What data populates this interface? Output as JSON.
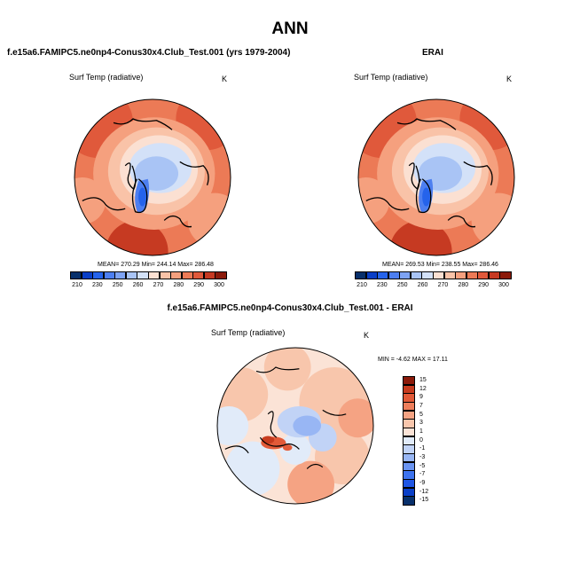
{
  "main_title": "ANN",
  "panels": [
    {
      "title": "f.e15a6.FAMIPC5.ne0np4-Conus30x4.Club_Test.001 (yrs 1979-2004)",
      "variable": "Surf Temp (radiative)",
      "units": "K",
      "stats": "MEAN= 270.29  Min= 244.14  Max= 286.48"
    },
    {
      "title": "ERAI",
      "variable": "Surf Temp (radiative)",
      "units": "K",
      "stats": "MEAN= 269.53  Min= 238.55  Max= 286.46"
    },
    {
      "title": "f.e15a6.FAMIPC5.ne0np4-Conus30x4.Club_Test.001 - ERAI",
      "variable": "Surf Temp (radiative)",
      "units": "K",
      "stats": "MIN = -4.62 MAX = 17.11"
    }
  ],
  "colors": {
    "abs_scale": [
      "#08306b",
      "#0a3fc7",
      "#2563eb",
      "#4d7ff0",
      "#7ea3f3",
      "#a9c4f5",
      "#d3e1f8",
      "#fbe0d2",
      "#f9c3a8",
      "#f5a07e",
      "#ec7a56",
      "#e0593b",
      "#c63a22",
      "#8b1a0a"
    ],
    "diff_scale": [
      "#08306b",
      "#0a3fc7",
      "#1f56e4",
      "#3d73ef",
      "#6b95f2",
      "#98b6f4",
      "#c1d3f6",
      "#e1ebf9",
      "#fbe3d6",
      "#f8c6ac",
      "#f5a383",
      "#ee7e5b",
      "#e25a38",
      "#c73b1e",
      "#8b1a0a"
    ]
  },
  "chart_data": [
    {
      "type": "heatmap",
      "projection": "north polar stereographic",
      "title": "f.e15a6.FAMIPC5.ne0np4-Conus30x4.Club_Test.001 (yrs 1979-2004)",
      "variable": "Surf Temp (radiative)",
      "units": "K",
      "mean": 270.29,
      "min": 244.14,
      "max": 286.48,
      "colorbar_ticks": [
        "210",
        "230",
        "250",
        "260",
        "270",
        "280",
        "290",
        "300"
      ]
    },
    {
      "type": "heatmap",
      "projection": "north polar stereographic",
      "title": "ERAI",
      "variable": "Surf Temp (radiative)",
      "units": "K",
      "mean": 269.53,
      "min": 238.55,
      "max": 286.46,
      "colorbar_ticks": [
        "210",
        "230",
        "250",
        "260",
        "270",
        "280",
        "290",
        "300"
      ]
    },
    {
      "type": "heatmap",
      "projection": "north polar stereographic",
      "title": "f.e15a6.FAMIPC5.ne0np4-Conus30x4.Club_Test.001 - ERAI",
      "variable": "Surf Temp (radiative)",
      "units": "K",
      "min": -4.62,
      "max": 17.11,
      "colorbar_ticks": [
        "15",
        "12",
        "9",
        "7",
        "5",
        "3",
        "1",
        "0",
        "-1",
        "-3",
        "-5",
        "-7",
        "-9",
        "-12",
        "-15"
      ]
    }
  ]
}
